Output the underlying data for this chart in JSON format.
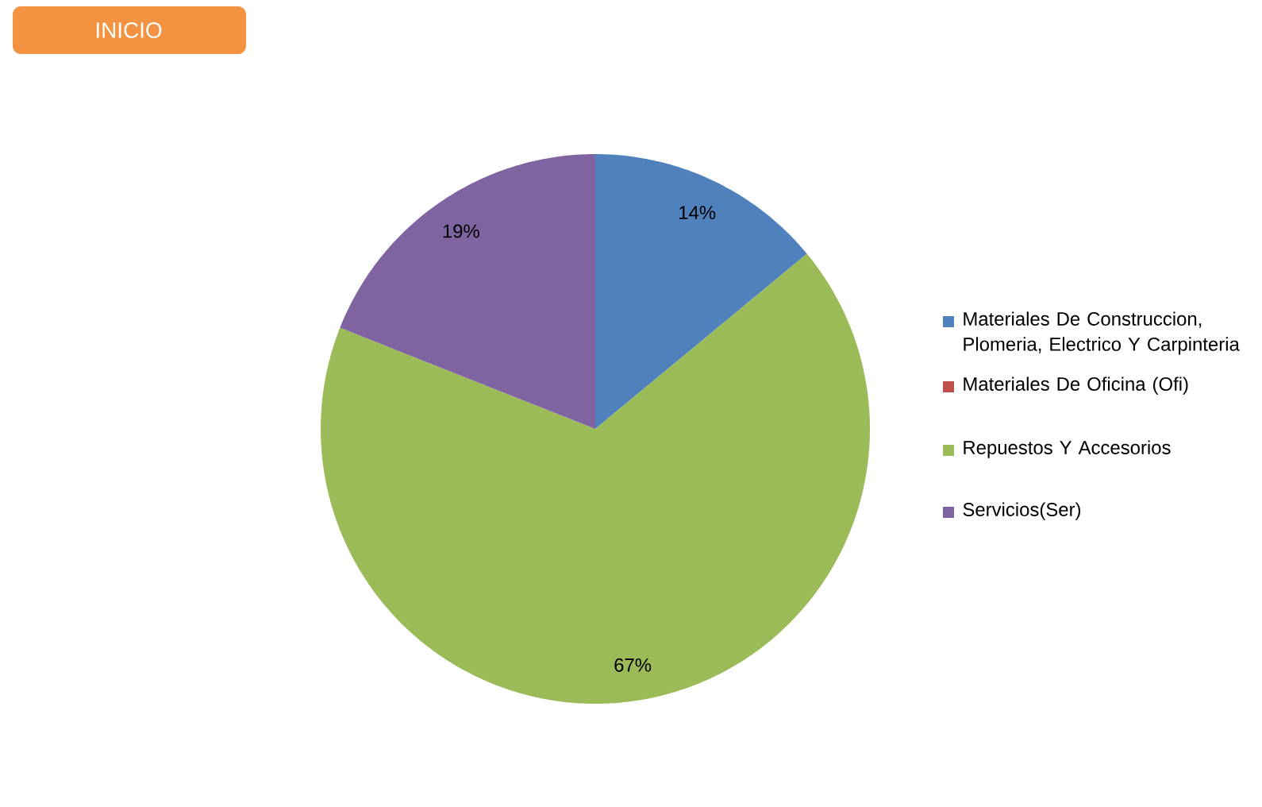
{
  "chart_data": {
    "type": "pie",
    "categories": [
      "Materiales De Construccion, Plomeria, Electrico Y Carpinteria",
      "Materiales De Oficina (Ofi)",
      "Repuestos Y Accesorios",
      "Servicios(Ser)"
    ],
    "values": [
      14,
      0,
      67,
      19
    ],
    "colors": [
      "#4f81bd",
      "#c0504d",
      "#9bbb59",
      "#8064a2"
    ],
    "value_labels": [
      "14%",
      null,
      "67%",
      "19%"
    ],
    "legend": "right",
    "annotations": [
      "INICIO"
    ]
  }
}
